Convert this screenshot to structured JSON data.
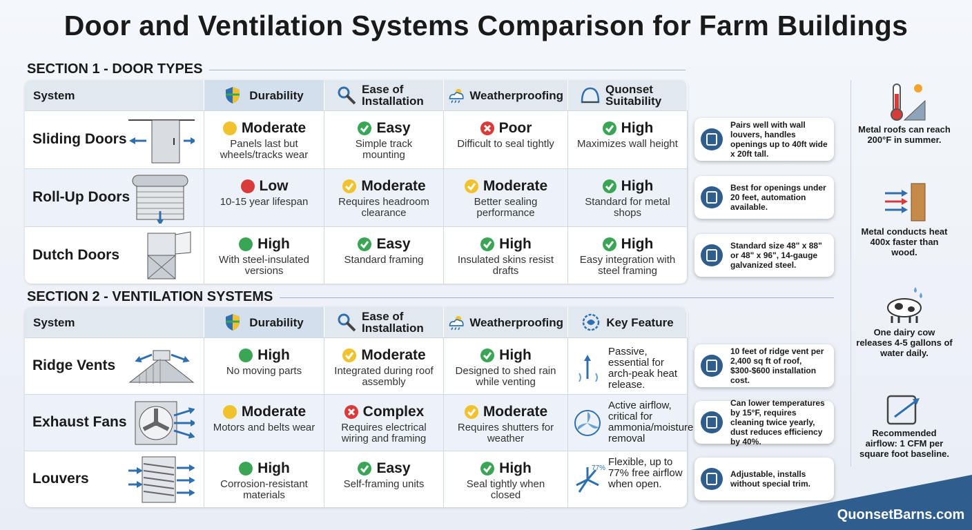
{
  "title": "Door and Ventilation Systems Comparison for Farm Buildings",
  "sections": [
    {
      "heading": "SECTION 1 - DOOR TYPES",
      "columns": [
        "System",
        "Durability",
        "Ease of Installation",
        "Weatherproofing",
        "Quonset Suitability"
      ],
      "rows": [
        {
          "name": "Sliding Doors",
          "cells": [
            {
              "rating": "Moderate",
              "color": "#f2c12e",
              "note": "Panels last but wheels/tracks wear"
            },
            {
              "rating": "Easy",
              "color": "#3aa655",
              "note": "Simple track mounting"
            },
            {
              "rating": "Poor",
              "color": "#d93a3a",
              "note": "Difficult to seal tightly"
            },
            {
              "rating": "High",
              "color": "#3aa655",
              "note": "Maximizes wall height"
            }
          ],
          "tip": "Pairs well with wall louvers, handles openings up to 40ft wide x 20ft tall."
        },
        {
          "name": "Roll-Up Doors",
          "cells": [
            {
              "rating": "Low",
              "color": "#d93a3a",
              "note": "10-15 year lifespan"
            },
            {
              "rating": "Moderate",
              "color": "#f2c12e",
              "note": "Requires headroom clearance"
            },
            {
              "rating": "Moderate",
              "color": "#f2c12e",
              "note": "Better sealing performance"
            },
            {
              "rating": "High",
              "color": "#3aa655",
              "note": "Standard for metal shops"
            }
          ],
          "tip": "Best for openings under 20 feet, automation available."
        },
        {
          "name": "Dutch Doors",
          "cells": [
            {
              "rating": "High",
              "color": "#3aa655",
              "note": "With steel-insulated versions"
            },
            {
              "rating": "Easy",
              "color": "#3aa655",
              "note": "Standard framing"
            },
            {
              "rating": "High",
              "color": "#3aa655",
              "note": "Insulated skins resist drafts"
            },
            {
              "rating": "High",
              "color": "#3aa655",
              "note": "Easy integration with steel framing"
            }
          ],
          "tip": "Standard size 48\" x 88\" or 48\" x 96\", 14-gauge galvanized steel."
        }
      ]
    },
    {
      "heading": "SECTION 2 - VENTILATION SYSTEMS",
      "columns": [
        "System",
        "Durability",
        "Ease of Installation",
        "Weatherproofing",
        "Key Feature"
      ],
      "rows": [
        {
          "name": "Ridge Vents",
          "cells": [
            {
              "rating": "High",
              "color": "#3aa655",
              "note": "No moving parts"
            },
            {
              "rating": "Moderate",
              "color": "#f2c12e",
              "note": "Integrated during roof assembly"
            },
            {
              "rating": "High",
              "color": "#3aa655",
              "note": "Designed to shed rain while venting"
            },
            {
              "note": "Passive, essential for arch-peak heat release."
            }
          ],
          "tip": "10 feet of ridge vent per 2,400 sq ft of roof, $300-$600 installation cost."
        },
        {
          "name": "Exhaust Fans",
          "cells": [
            {
              "rating": "Moderate",
              "color": "#f2c12e",
              "note": "Motors and belts wear"
            },
            {
              "rating": "Complex",
              "color": "#d93a3a",
              "note": "Requires electrical wiring and framing"
            },
            {
              "rating": "Moderate",
              "color": "#f2c12e",
              "note": "Requires shutters for weather"
            },
            {
              "note": "Active airflow, critical for ammonia/moisture removal"
            }
          ],
          "tip": "Can lower temperatures by 15°F, requires cleaning twice yearly, dust reduces efficiency by 40%."
        },
        {
          "name": "Louvers",
          "cells": [
            {
              "rating": "High",
              "color": "#3aa655",
              "note": "Corrosion-resistant materials"
            },
            {
              "rating": "Easy",
              "color": "#3aa655",
              "note": "Self-framing units"
            },
            {
              "rating": "High",
              "color": "#3aa655",
              "note": "Seal tightly when closed"
            },
            {
              "badge": "77%",
              "note": "Flexible, up to 77% free airflow when open."
            }
          ],
          "tip": "Adjustable, installs without special trim."
        }
      ]
    }
  ],
  "facts": [
    "Metal roofs can reach 200°F in summer.",
    "Metal conducts heat 400x faster than wood.",
    "One dairy cow releases 4-5 gallons of water daily.",
    "Recommended airflow: 1 CFM per square foot baseline."
  ],
  "footer": "QuonsetBarns.com"
}
